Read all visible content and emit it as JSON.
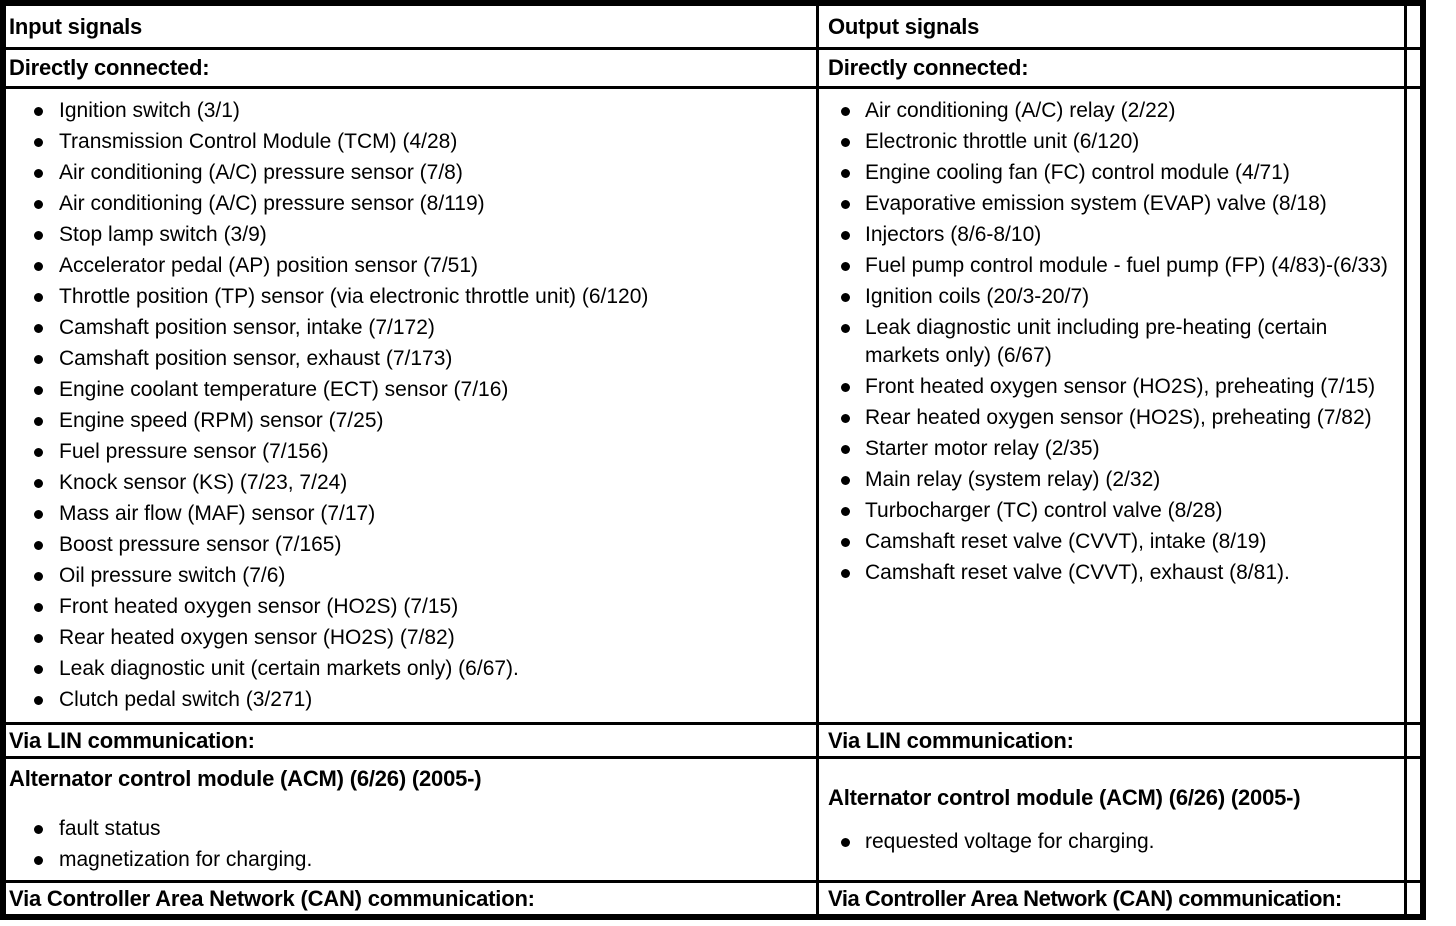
{
  "document": {
    "input_column": {
      "header": "Input signals",
      "directly_connected_label": "Directly connected:",
      "directly_connected_items": [
        "Ignition switch (3/1)",
        "Transmission Control Module (TCM) (4/28)",
        "Air conditioning (A/C) pressure sensor (7/8)",
        "Air conditioning (A/C) pressure sensor (8/119)",
        "Stop lamp switch (3/9)",
        "Accelerator pedal (AP) position sensor (7/51)",
        "Throttle position (TP) sensor (via electronic throttle unit) (6/120)",
        "Camshaft position sensor, intake (7/172)",
        "Camshaft position sensor, exhaust (7/173)",
        "Engine coolant temperature (ECT) sensor (7/16)",
        "Engine speed (RPM) sensor (7/25)",
        "Fuel pressure sensor (7/156)",
        "Knock sensor (KS) (7/23, 7/24)",
        "Mass air flow (MAF) sensor (7/17)",
        "Boost pressure sensor (7/165)",
        "Oil pressure switch (7/6)",
        "Front heated oxygen sensor (HO2S) (7/15)",
        "Rear heated oxygen sensor (HO2S) (7/82)",
        "Leak diagnostic unit (certain markets only) (6/67).",
        "Clutch pedal switch (3/271)"
      ],
      "via_lin_label": "Via LIN communication:",
      "acm_heading": "Alternator control module (ACM) (6/26) (2005-)",
      "acm_items": [
        "fault status",
        "magnetization for charging."
      ],
      "via_can_label": "Via Controller Area Network (CAN) communication:"
    },
    "output_column": {
      "header": "Output signals",
      "directly_connected_label": "Directly connected:",
      "directly_connected_items": [
        "Air conditioning (A/C) relay (2/22)",
        "Electronic throttle unit (6/120)",
        "Engine cooling fan (FC) control module (4/71)",
        "Evaporative emission system (EVAP) valve (8/18)",
        "Injectors (8/6-8/10)",
        "Fuel pump control module - fuel pump (FP) (4/83)-(6/33)",
        "Ignition coils (20/3-20/7)",
        "Leak diagnostic unit including pre-heating (certain markets only) (6/67)",
        "Front heated oxygen sensor (HO2S), preheating (7/15)",
        "Rear heated oxygen sensor (HO2S), preheating (7/82)",
        "Starter motor relay (2/35)",
        "Main relay (system relay) (2/32)",
        "Turbocharger (TC) control valve (8/28)",
        "Camshaft reset valve (CVVT), intake (8/19)",
        "Camshaft reset valve (CVVT), exhaust (8/81)."
      ],
      "via_lin_label": "Via LIN communication:",
      "acm_heading": "Alternator control module (ACM) (6/26) (2005-)",
      "acm_items": [
        "requested voltage for charging."
      ],
      "via_can_label": "Via Controller Area Network (CAN) communication:"
    }
  }
}
